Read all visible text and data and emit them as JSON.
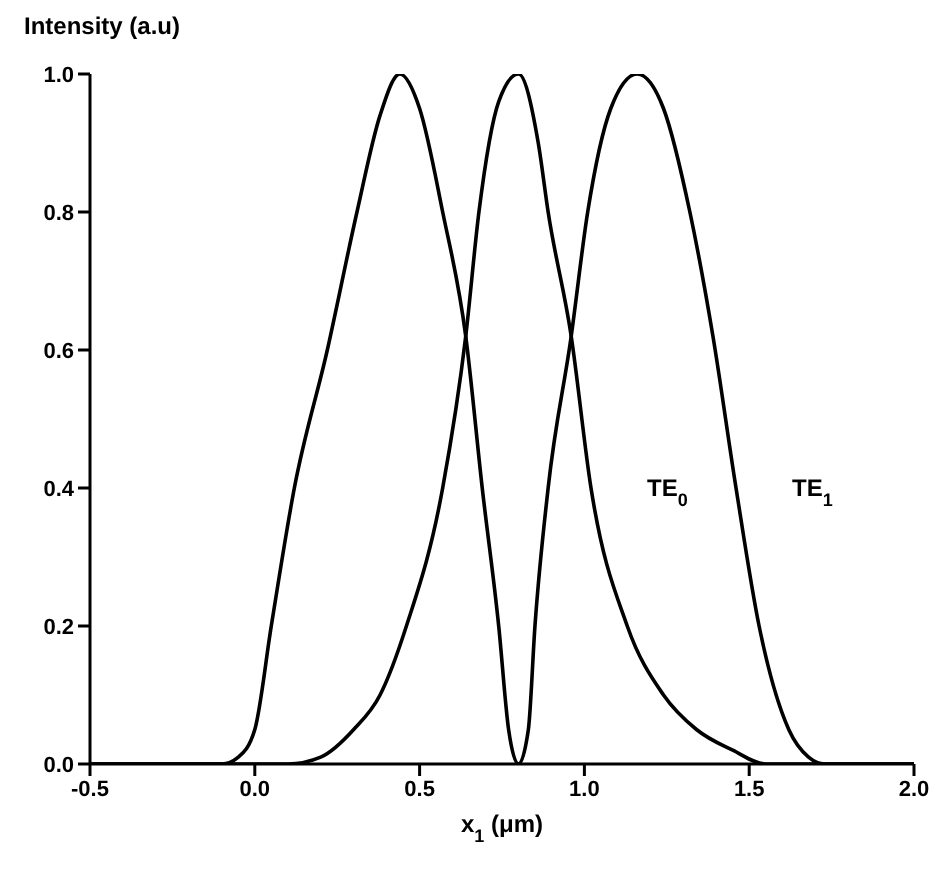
{
  "chart_data": {
    "type": "line",
    "xlabel": "x$_{1}$ (μm)",
    "ylabel": "Intensity (a.u)",
    "xlim": [
      -0.5,
      2.0
    ],
    "xticks": [
      {
        "value": -0.5,
        "label": "-0.5"
      },
      {
        "value": 0,
        "label": "0.0"
      },
      {
        "value": 0.5,
        "label": "0.5"
      },
      {
        "value": 1,
        "label": "1.0"
      },
      {
        "value": 1.5,
        "label": "1.5"
      },
      {
        "value": 2,
        "label": "2.0"
      }
    ],
    "ylim": [
      0,
      1
    ],
    "yticks": [
      {
        "value": 0,
        "label": "0.0"
      },
      {
        "value": 0.2,
        "label": "0.2"
      },
      {
        "value": 0.4,
        "label": "0.4"
      },
      {
        "value": 0.6,
        "label": "0.6"
      },
      {
        "value": 0.8,
        "label": "0.8"
      },
      {
        "value": 1,
        "label": "1.0"
      }
    ],
    "grid": false,
    "marker": "none",
    "line_style": "solid",
    "series": [
      {
        "name": "TE$_{0}$",
        "color": "#000000",
        "x": [
          -0.5,
          0.1,
          0.2,
          0.3,
          0.38,
          0.46,
          0.57,
          0.64,
          0.68,
          0.74,
          0.8,
          0.86,
          0.89,
          0.96,
          1.02,
          1.13,
          1.24,
          1.34,
          1.45,
          1.55,
          2.0
        ],
        "values": [
          0,
          0,
          0.01,
          0.05,
          0.1,
          0.2,
          0.4,
          0.62,
          0.8,
          0.96,
          1,
          0.9,
          0.8,
          0.62,
          0.4,
          0.2,
          0.1,
          0.05,
          0.02,
          0,
          0
        ]
      },
      {
        "name": "TE$_{1}$",
        "color": "#000000",
        "x": [
          -0.5,
          -0.1,
          -0.05,
          0,
          0.05,
          0.12,
          0.22,
          0.31,
          0.38,
          0.44,
          0.5,
          0.57,
          0.64,
          0.69,
          0.74,
          0.77,
          0.8,
          0.83,
          0.85,
          0.89,
          0.96,
          1.01,
          1.08,
          1.16,
          1.24,
          1.32,
          1.39,
          1.46,
          1.53,
          1.62,
          1.68,
          1.73,
          2.0
        ],
        "values": [
          0,
          0,
          0.01,
          0.05,
          0.2,
          0.4,
          0.6,
          0.8,
          0.94,
          1,
          0.95,
          0.8,
          0.62,
          0.4,
          0.2,
          0.05,
          0,
          0.05,
          0.2,
          0.4,
          0.62,
          0.8,
          0.95,
          1,
          0.95,
          0.8,
          0.62,
          0.4,
          0.2,
          0.05,
          0.01,
          0,
          0
        ]
      }
    ]
  }
}
